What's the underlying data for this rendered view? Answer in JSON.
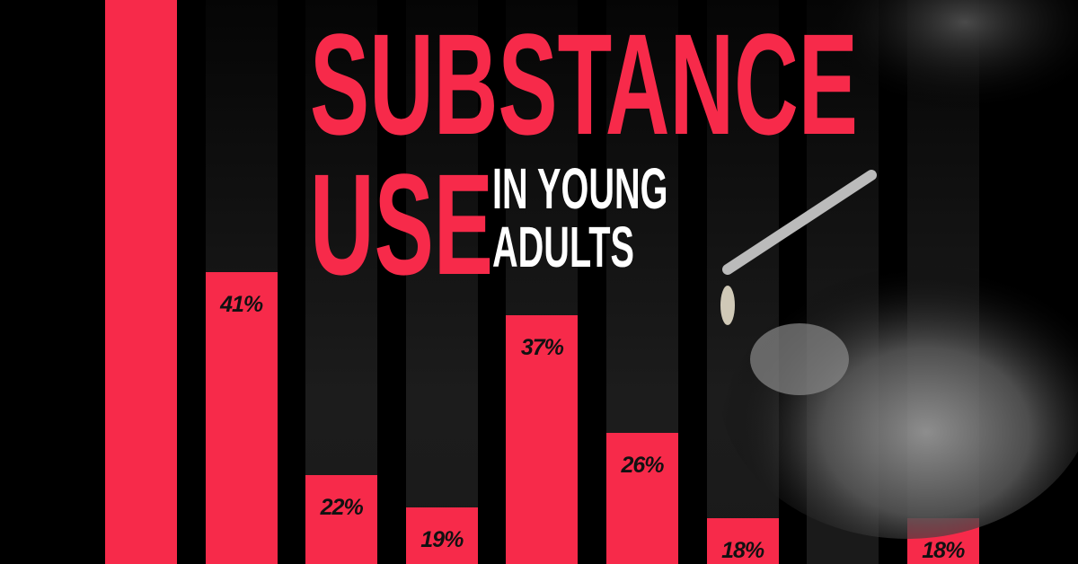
{
  "title": {
    "line1": "SUBSTANCE",
    "line2": "USE",
    "line3": "IN YOUNG",
    "line4": "ADULTS"
  },
  "colors": {
    "accent": "#f72a4a",
    "background": "#000000",
    "column": "#1a1a1a",
    "subtitle": "#ffffff"
  },
  "chart_data": {
    "type": "bar",
    "title": "SUBSTANCE USE IN YOUNG ADULTS",
    "values": [
      null,
      41,
      22,
      19,
      37,
      26,
      18,
      null,
      18
    ],
    "data_labels": [
      "",
      "41%",
      "22%",
      "19%",
      "37%",
      "26%",
      "18%",
      "",
      "18%"
    ],
    "unit": "%",
    "grid": false,
    "legend": "none"
  }
}
